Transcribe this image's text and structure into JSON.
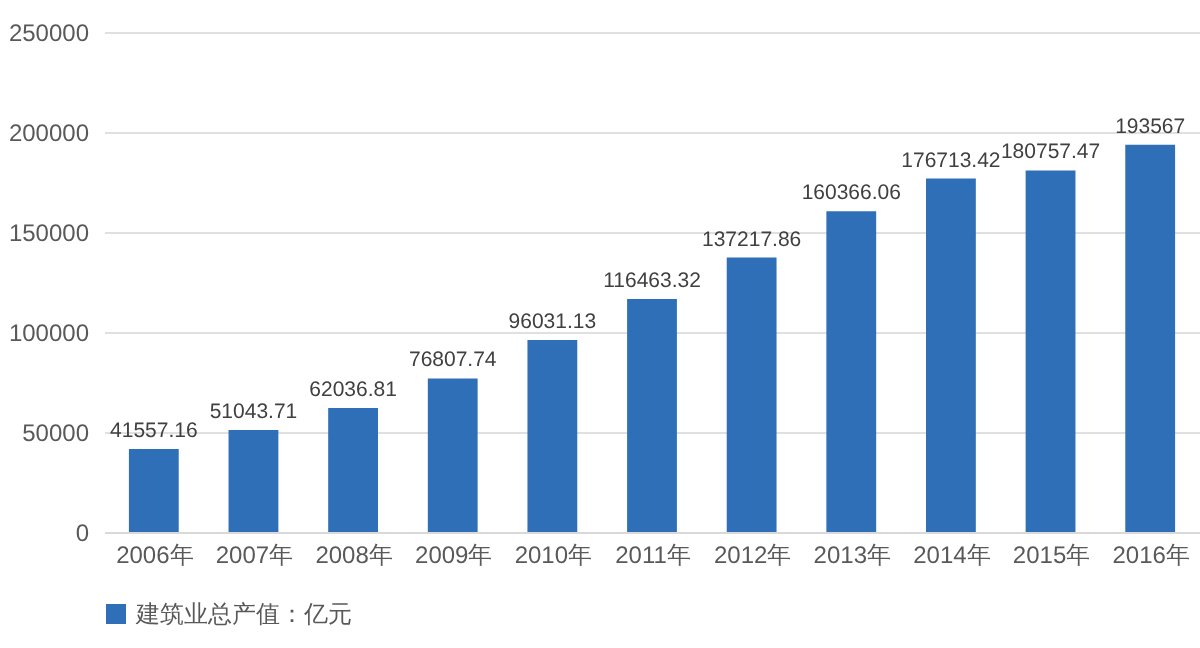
{
  "chart_data": {
    "type": "bar",
    "categories": [
      "2006年",
      "2007年",
      "2008年",
      "2009年",
      "2010年",
      "2011年",
      "2012年",
      "2013年",
      "2014年",
      "2015年",
      "2016年"
    ],
    "series": [
      {
        "name": "建筑业总产值：亿元",
        "color": "#2f6fb8",
        "values": [
          41557.16,
          51043.71,
          62036.81,
          76807.74,
          96031.13,
          116463.32,
          137217.86,
          160366.06,
          176713.42,
          180757.47,
          193567
        ]
      }
    ],
    "ylim": [
      0,
      250000
    ],
    "yticks": [
      0,
      50000,
      100000,
      150000,
      200000,
      250000
    ],
    "grid": "y",
    "legend": "bottom",
    "data_labels": true
  }
}
